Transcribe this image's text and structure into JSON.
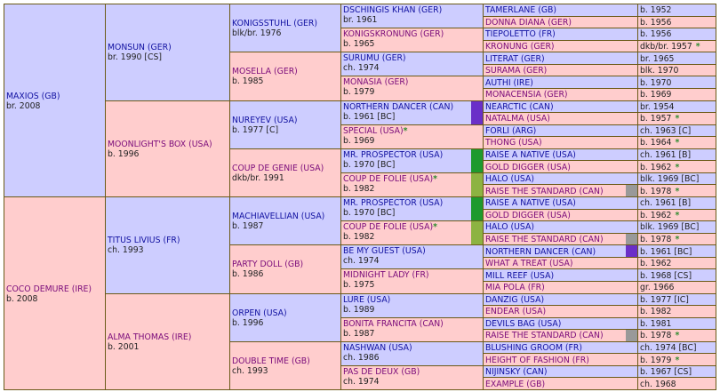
{
  "colors": {
    "male_bg": "#cdcdff",
    "female_bg": "#ffcdcd",
    "border": "#6b5a18",
    "dosage_star": "#2e8b2e"
  },
  "gen1": [
    {
      "name": "MAXIOS (GB)",
      "detail": "br. 2008"
    },
    {
      "name": "COCO DEMURE (IRE)",
      "detail": "b. 2008"
    }
  ],
  "gen2": [
    {
      "name": "MONSUN (GER)",
      "detail": "br. 1990 [CS]"
    },
    {
      "name": "MOONLIGHT'S BOX (USA)",
      "detail": "b. 1996"
    },
    {
      "name": "TITUS LIVIUS (FR)",
      "detail": "ch. 1993"
    },
    {
      "name": "ALMA THOMAS (IRE)",
      "detail": "b. 2001"
    }
  ],
  "gen3": [
    {
      "name": "KONIGSSTUHL (GER)",
      "detail": "blk/br. 1976"
    },
    {
      "name": "MOSELLA (GER)",
      "detail": "b. 1985"
    },
    {
      "name": "NUREYEV (USA)",
      "detail": "b. 1977 [C]"
    },
    {
      "name": "COUP DE GENIE (USA)",
      "detail": "dkb/br. 1991"
    },
    {
      "name": "MACHIAVELLIAN (USA)",
      "detail": "b. 1987"
    },
    {
      "name": "PARTY DOLL (GB)",
      "detail": "b. 1986"
    },
    {
      "name": "ORPEN (USA)",
      "detail": "b. 1996"
    },
    {
      "name": "DOUBLE TIME (GB)",
      "detail": "ch. 1993"
    }
  ],
  "gen4": [
    {
      "name": "DSCHINGIS KHAN (GER)",
      "detail": "br. 1961",
      "star": ""
    },
    {
      "name": "KONIGSKRONUNG (GER)",
      "detail": "b. 1965",
      "star": ""
    },
    {
      "name": "SURUMU (GER)",
      "detail": "ch. 1974",
      "star": ""
    },
    {
      "name": "MONASIA (GER)",
      "detail": "b. 1979",
      "star": ""
    },
    {
      "name": "NORTHERN DANCER (CAN)",
      "detail": "b. 1961 [BC]",
      "star": ""
    },
    {
      "name": "SPECIAL (USA)",
      "detail": "b. 1969",
      "star": "*"
    },
    {
      "name": "MR. PROSPECTOR (USA)",
      "detail": "b. 1970 [BC]",
      "star": ""
    },
    {
      "name": "COUP DE FOLIE (USA)",
      "detail": "b. 1982",
      "star": "*"
    },
    {
      "name": "MR. PROSPECTOR (USA)",
      "detail": "b. 1970 [BC]",
      "star": ""
    },
    {
      "name": "COUP DE FOLIE (USA)",
      "detail": "b. 1982",
      "star": "*"
    },
    {
      "name": "BE MY GUEST (USA)",
      "detail": "ch. 1974",
      "star": ""
    },
    {
      "name": "MIDNIGHT LADY (FR)",
      "detail": "b. 1975",
      "star": ""
    },
    {
      "name": "LURE (USA)",
      "detail": "b. 1989",
      "star": ""
    },
    {
      "name": "BONITA FRANCITA (CAN)",
      "detail": "b. 1987",
      "star": ""
    },
    {
      "name": "NASHWAN (USA)",
      "detail": "ch. 1986",
      "star": ""
    },
    {
      "name": "PAS DE DEUX (GB)",
      "detail": "ch. 1974",
      "star": ""
    }
  ],
  "gen5": [
    {
      "name": "TAMERLANE (GB)",
      "detail": "b. 1952",
      "star": ""
    },
    {
      "name": "DONNA DIANA (GER)",
      "detail": "b. 1956",
      "star": ""
    },
    {
      "name": "TIEPOLETTO (FR)",
      "detail": "b. 1956",
      "star": ""
    },
    {
      "name": "KRONUNG (GER)",
      "detail": "dkb/br. 1957",
      "star": "*"
    },
    {
      "name": "LITERAT (GER)",
      "detail": "br. 1965",
      "star": ""
    },
    {
      "name": "SURAMA (GER)",
      "detail": "blk. 1970",
      "star": ""
    },
    {
      "name": "AUTHI (IRE)",
      "detail": "b. 1970",
      "star": ""
    },
    {
      "name": "MONACENSIA (GER)",
      "detail": "b. 1969",
      "star": ""
    },
    {
      "name": "NEARCTIC (CAN)",
      "detail": "br. 1954",
      "star": ""
    },
    {
      "name": "NATALMA (USA)",
      "detail": "b. 1957",
      "star": "*"
    },
    {
      "name": "FORLI (ARG)",
      "detail": "ch. 1963 [C]",
      "star": ""
    },
    {
      "name": "THONG (USA)",
      "detail": "b. 1964",
      "star": "*"
    },
    {
      "name": "RAISE A NATIVE (USA)",
      "detail": "ch. 1961 [B]",
      "star": ""
    },
    {
      "name": "GOLD DIGGER (USA)",
      "detail": "b. 1962",
      "star": "*"
    },
    {
      "name": "HALO (USA)",
      "detail": "blk. 1969 [BC]",
      "star": ""
    },
    {
      "name": "RAISE THE STANDARD (CAN)",
      "detail": "b. 1978",
      "star": "*"
    },
    {
      "name": "RAISE A NATIVE (USA)",
      "detail": "ch. 1961 [B]",
      "star": ""
    },
    {
      "name": "GOLD DIGGER (USA)",
      "detail": "b. 1962",
      "star": "*"
    },
    {
      "name": "HALO (USA)",
      "detail": "blk. 1969 [BC]",
      "star": ""
    },
    {
      "name": "RAISE THE STANDARD (CAN)",
      "detail": "b. 1978",
      "star": "*"
    },
    {
      "name": "NORTHERN DANCER (CAN)",
      "detail": "b. 1961 [BC]",
      "star": ""
    },
    {
      "name": "WHAT A TREAT (USA)",
      "detail": "b. 1962",
      "star": ""
    },
    {
      "name": "MILL REEF (USA)",
      "detail": "b. 1968 [CS]",
      "star": ""
    },
    {
      "name": "MIA POLA (FR)",
      "detail": "gr. 1966",
      "star": ""
    },
    {
      "name": "DANZIG (USA)",
      "detail": "b. 1977 [IC]",
      "star": ""
    },
    {
      "name": "ENDEAR (USA)",
      "detail": "b. 1982",
      "star": ""
    },
    {
      "name": "DEVILS BAG (USA)",
      "detail": "b. 1981",
      "star": ""
    },
    {
      "name": "RAISE THE STANDARD (CAN)",
      "detail": "b. 1978",
      "star": "*"
    },
    {
      "name": "BLUSHING GROOM (FR)",
      "detail": "ch. 1974 [BC]",
      "star": ""
    },
    {
      "name": "HEIGHT OF FASHION (FR)",
      "detail": "b. 1979",
      "star": "*"
    },
    {
      "name": "NIJINSKY (CAN)",
      "detail": "b. 1967 [CS]",
      "star": ""
    },
    {
      "name": "EXAMPLE (GB)",
      "detail": "ch. 1968",
      "star": ""
    }
  ],
  "inbreeding_colors": {
    "gen4": {
      "4": "#6a2fc8",
      "6": "#1e9a2e",
      "7": "#8db342",
      "8": "#1e9a2e",
      "9": "#8db342"
    },
    "gen5": {
      "15": "#999999",
      "19": "#999999",
      "20": "#6a2fc8",
      "27": "#999999"
    }
  }
}
